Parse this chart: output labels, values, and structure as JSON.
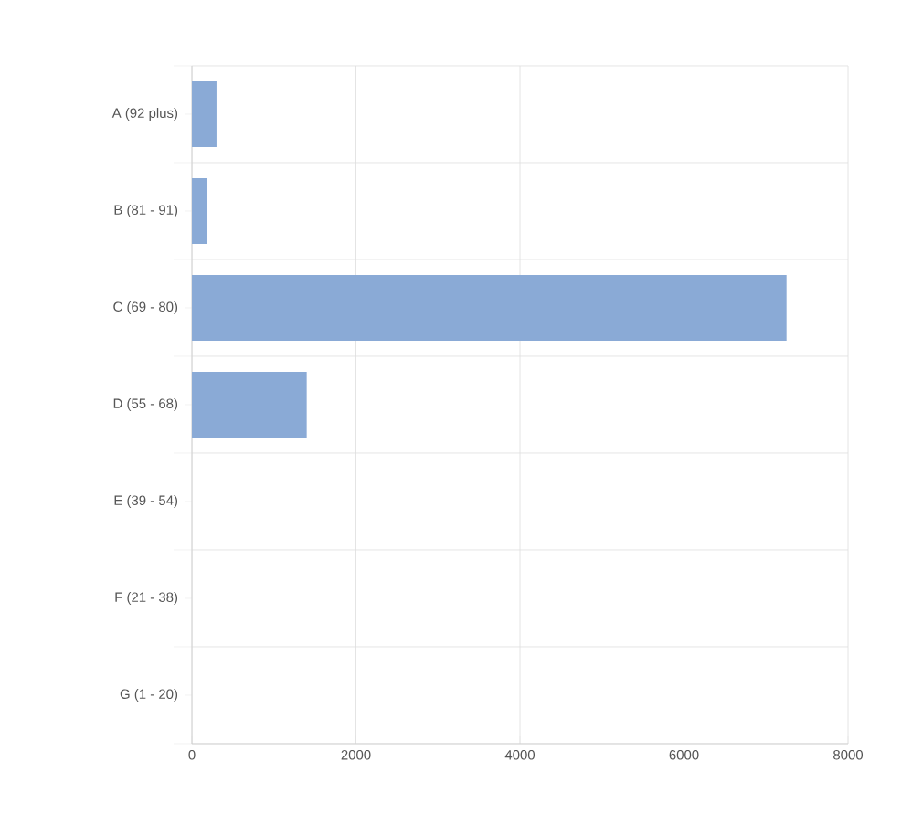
{
  "chart_data": {
    "type": "bar",
    "orientation": "horizontal",
    "categories": [
      "A (92 plus)",
      "B (81 - 91)",
      "C (69 - 80)",
      "D (55 - 68)",
      "E (39 - 54)",
      "F (21 - 38)",
      "G (1 - 20)"
    ],
    "values": [
      300,
      180,
      7250,
      1400,
      0,
      0,
      0
    ],
    "color": "#8aaad6",
    "xlim": [
      0,
      8000
    ],
    "xticks": [
      0,
      2000,
      4000,
      6000,
      8000
    ],
    "grid": true
  }
}
